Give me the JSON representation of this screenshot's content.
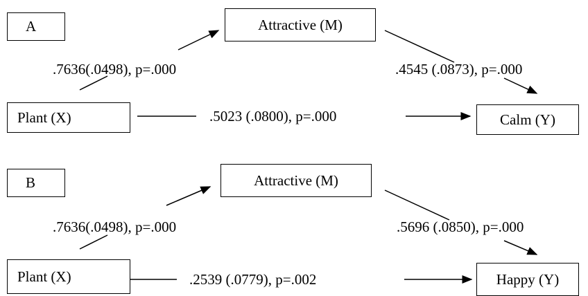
{
  "panels": [
    {
      "tag": "A",
      "mediator": "Attractive (M)",
      "predictor": "Plant (X)",
      "outcome": "Calm (Y)",
      "path_a": ".7636(.0498), p=.000",
      "path_b": ".4545 (.0873), p=.000",
      "path_c": ".5023 (.0800), p=.000"
    },
    {
      "tag": "B",
      "mediator": "Attractive (M)",
      "predictor": "Plant (X)",
      "outcome": "Happy (Y)",
      "path_a": ".7636(.0498), p=.000",
      "path_b": ".5696 (.0850), p=.000",
      "path_c": ".2539 (.0779), p=.002"
    }
  ]
}
